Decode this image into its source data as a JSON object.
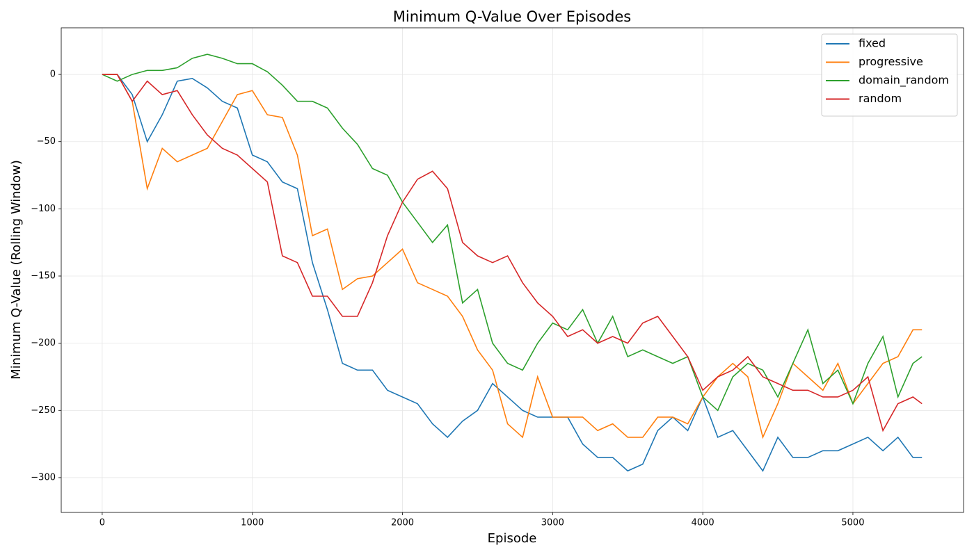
{
  "chart_data": {
    "type": "line",
    "title": "Minimum Q-Value Over Episodes",
    "x_label": "Episode",
    "y_label": "Minimum Q-Value (Rolling Window)",
    "x": [
      0,
      100,
      200,
      300,
      400,
      500,
      600,
      700,
      800,
      900,
      1000,
      1100,
      1200,
      1300,
      1400,
      1500,
      1600,
      1700,
      1800,
      1900,
      2000,
      2100,
      2200,
      2300,
      2400,
      2500,
      2600,
      2700,
      2800,
      2900,
      3000,
      3100,
      3200,
      3300,
      3400,
      3500,
      3600,
      3700,
      3800,
      3900,
      4000,
      4100,
      4200,
      4300,
      4400,
      4500,
      4600,
      4700,
      4800,
      4900,
      5000,
      5100,
      5200,
      5300,
      5400,
      5460
    ],
    "series": [
      {
        "name": "fixed",
        "color": "#1f77b4",
        "values": [
          0,
          0,
          -15,
          -50,
          -30,
          -5,
          -3,
          -10,
          -20,
          -25,
          -60,
          -65,
          -80,
          -85,
          -140,
          -175,
          -215,
          -220,
          -220,
          -235,
          -240,
          -245,
          -260,
          -270,
          -258,
          -250,
          -230,
          -240,
          -250,
          -255,
          -255,
          -255,
          -275,
          -285,
          -285,
          -295,
          -290,
          -265,
          -255,
          -265,
          -240,
          -270,
          -265,
          -280,
          -295,
          -270,
          -285,
          -285,
          -280,
          -280,
          -275,
          -270,
          -280,
          -270,
          -285,
          -285
        ]
      },
      {
        "name": "progressive",
        "color": "#ff7f0e",
        "values": [
          0,
          0,
          -20,
          -85,
          -55,
          -65,
          -60,
          -55,
          -35,
          -15,
          -12,
          -30,
          -32,
          -60,
          -120,
          -115,
          -160,
          -152,
          -150,
          -140,
          -130,
          -155,
          -160,
          -165,
          -180,
          -205,
          -220,
          -260,
          -270,
          -225,
          -255,
          -255,
          -255,
          -265,
          -260,
          -270,
          -270,
          -255,
          -255,
          -260,
          -240,
          -225,
          -215,
          -225,
          -270,
          -245,
          -215,
          -225,
          -235,
          -215,
          -245,
          -230,
          -215,
          -210,
          -190,
          -190
        ]
      },
      {
        "name": "domain_random",
        "color": "#2ca02c",
        "values": [
          0,
          -5,
          0,
          3,
          3,
          5,
          12,
          15,
          12,
          8,
          8,
          2,
          -8,
          -20,
          -20,
          -25,
          -40,
          -52,
          -70,
          -75,
          -95,
          -110,
          -125,
          -112,
          -170,
          -160,
          -200,
          -215,
          -220,
          -200,
          -185,
          -190,
          -175,
          -200,
          -180,
          -210,
          -205,
          -210,
          -215,
          -210,
          -240,
          -250,
          -225,
          -215,
          -220,
          -240,
          -215,
          -190,
          -230,
          -220,
          -245,
          -215,
          -195,
          -240,
          -215,
          -210
        ]
      },
      {
        "name": "random",
        "color": "#d62728",
        "values": [
          0,
          0,
          -20,
          -5,
          -15,
          -12,
          -30,
          -45,
          -55,
          -60,
          -70,
          -80,
          -135,
          -140,
          -165,
          -165,
          -180,
          -180,
          -155,
          -120,
          -95,
          -78,
          -72,
          -85,
          -125,
          -135,
          -140,
          -135,
          -155,
          -170,
          -180,
          -195,
          -190,
          -200,
          -195,
          -200,
          -185,
          -180,
          -195,
          -210,
          -235,
          -225,
          -220,
          -210,
          -225,
          -230,
          -235,
          -235,
          -240,
          -240,
          -235,
          -225,
          -265,
          -245,
          -240,
          -245
        ]
      }
    ],
    "xlim": [
      -273,
      5737
    ],
    "ylim": [
      -325.9,
      34.7
    ],
    "xticks": [
      0,
      1000,
      2000,
      3000,
      4000,
      5000
    ],
    "yticks": [
      0,
      {
        "value": -50,
        "label": "−50"
      },
      {
        "value": -100,
        "label": "−100"
      },
      {
        "value": -150,
        "label": "−150"
      },
      {
        "value": -200,
        "label": "−200"
      },
      {
        "value": -250,
        "label": "−250"
      },
      {
        "value": -300,
        "label": "−300"
      }
    ],
    "grid": true,
    "legend": "upper right"
  }
}
